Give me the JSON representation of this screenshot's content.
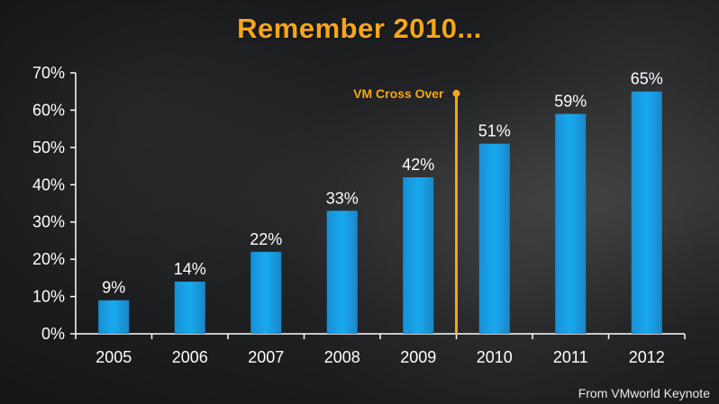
{
  "title": "Remember 2010...",
  "credit": "From VMworld Keynote",
  "colors": {
    "bar": "#19a9ee",
    "accent": "#f5a61a",
    "axis": "#ffffff"
  },
  "chart_data": {
    "type": "bar",
    "title": "Remember 2010...",
    "xlabel": "",
    "ylabel": "",
    "categories": [
      "2005",
      "2006",
      "2007",
      "2008",
      "2009",
      "2010",
      "2011",
      "2012"
    ],
    "values": [
      9,
      14,
      22,
      33,
      42,
      51,
      59,
      65
    ],
    "data_labels": [
      "9%",
      "14%",
      "22%",
      "33%",
      "42%",
      "51%",
      "59%",
      "65%"
    ],
    "ylim": [
      0,
      70
    ],
    "y_ticks": [
      0,
      10,
      20,
      30,
      40,
      50,
      60,
      70
    ],
    "y_tick_labels": [
      "0%",
      "10%",
      "20%",
      "30%",
      "40%",
      "50%",
      "60%",
      "70%"
    ],
    "grid": false,
    "annotation": {
      "label": "VM Cross Over",
      "between": [
        "2009",
        "2010"
      ]
    }
  }
}
